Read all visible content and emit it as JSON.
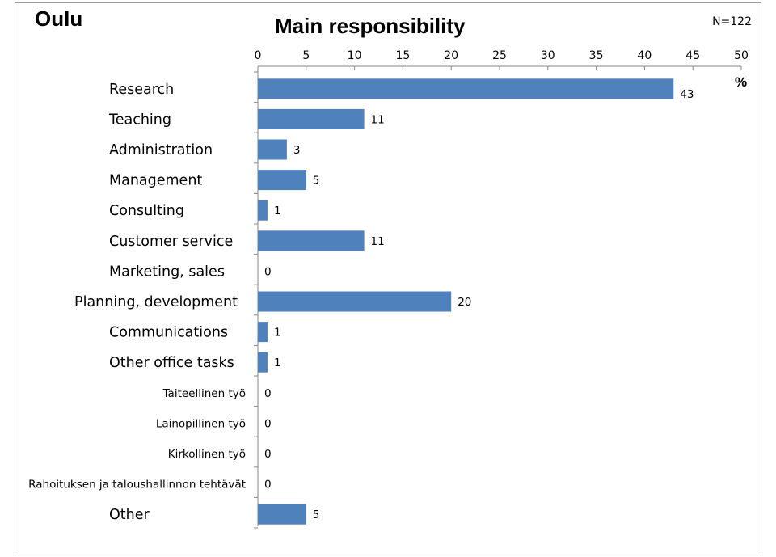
{
  "header": {
    "region": "Oulu",
    "title": "Main responsibility",
    "n_label": "N=122",
    "unit_label": "%"
  },
  "colors": {
    "bar": "#4f81bd",
    "axis": "#868686",
    "frame": "#9a9a9a"
  },
  "chart_data": {
    "type": "bar",
    "orientation": "horizontal",
    "title": "Main responsibility",
    "xlim": [
      0,
      50
    ],
    "x_ticks": [
      "0",
      "5",
      "10",
      "15",
      "20",
      "25",
      "30",
      "35",
      "40",
      "45",
      "50"
    ],
    "categories": [
      "Research",
      "Teaching",
      "Administration",
      "Management",
      "Consulting",
      "Customer service",
      "Marketing, sales",
      "Planning, development",
      "Communications",
      "Other office tasks",
      "Taiteellinen työ",
      "Lainopillinen työ",
      "Kirkollinen työ",
      "Rahoituksen ja taloushallinnon tehtävät",
      "Other"
    ],
    "small_label": [
      false,
      false,
      false,
      false,
      false,
      false,
      false,
      false,
      false,
      false,
      true,
      true,
      true,
      true,
      false
    ],
    "values": [
      43,
      11,
      3,
      5,
      1,
      11,
      0,
      20,
      1,
      1,
      0,
      0,
      0,
      0,
      5
    ],
    "value_labels": [
      "43",
      "11",
      "3",
      "5",
      "1",
      "11",
      "0",
      "20",
      "1",
      "1",
      "0",
      "0",
      "0",
      "0",
      "5"
    ],
    "grid": false,
    "legend": "none"
  }
}
